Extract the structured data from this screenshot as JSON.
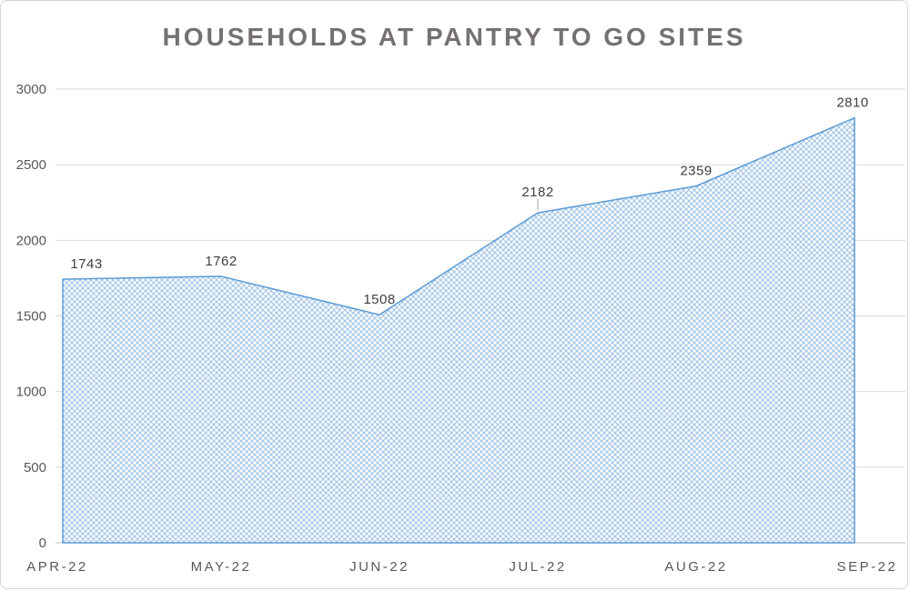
{
  "chart_data": {
    "type": "area",
    "title": "HOUSEHOLDS AT PANTRY TO GO SITES",
    "categories": [
      "APR-22",
      "MAY-22",
      "JUN-22",
      "JUL-22",
      "AUG-22",
      "SEP-22"
    ],
    "values": [
      1743,
      1762,
      1508,
      2182,
      2359,
      2810
    ],
    "data_labels": [
      1743,
      1762,
      1508,
      2182,
      2359,
      2810
    ],
    "xlabel": "",
    "ylabel": "",
    "ylim": [
      0,
      3000
    ],
    "ytick_step": 500,
    "ytick_labels": [
      "0",
      "500",
      "1000",
      "1500",
      "2000",
      "2500",
      "3000"
    ],
    "grid": "horizontal",
    "legend": "none",
    "leader_line_category": "JUL-22",
    "colors": {
      "area_fill_base": "#ffffff",
      "area_hatch": "#9dc3e6",
      "area_outline": "#5b9bd5",
      "title_text": "#757171",
      "axis_text": "#595959",
      "data_label_text": "#404040",
      "gridline": "#d9d9d9",
      "baseline": "#bfbfbf",
      "leader_line": "#a6a6a6"
    }
  }
}
